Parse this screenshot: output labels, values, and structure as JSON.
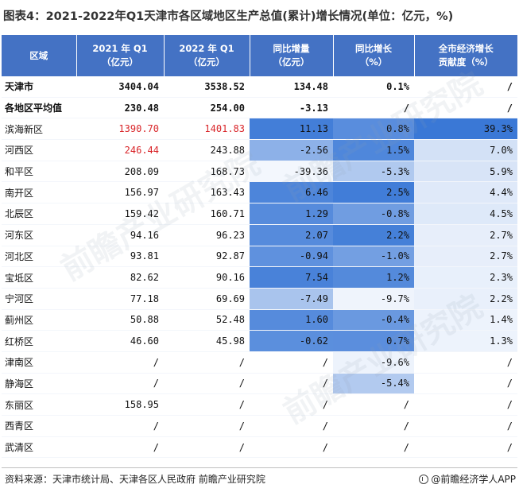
{
  "title": "图表4：2021-2022年Q1天津市各区域地区生产总值(累计)增长情况(单位：亿元，%)",
  "headers": [
    [
      "区域"
    ],
    [
      "2021 年 Q1",
      "（亿元）"
    ],
    [
      "2022 年 Q1",
      "（亿元）"
    ],
    [
      "同比增量",
      "（亿元）"
    ],
    [
      "同比增长",
      "（%）"
    ],
    [
      "全市经济增长",
      "贡献度（%）"
    ]
  ],
  "rows": [
    {
      "name": "天津市",
      "v2021": "3404.04",
      "v2022": "3538.52",
      "inc": "134.48",
      "growth": "0.1%",
      "contrib": "/",
      "bold": true
    },
    {
      "name": "各地区平均值",
      "v2021": "230.48",
      "v2022": "254.00",
      "inc": "-3.13",
      "growth": "/",
      "contrib": "/",
      "bold": true
    },
    {
      "name": "滨海新区",
      "v2021": "1390.70",
      "v2022": "1401.83",
      "inc": "11.13",
      "growth": "0.8%",
      "contrib": "39.3%",
      "red2021": true,
      "red2022": true
    },
    {
      "name": "河西区",
      "v2021": "246.44",
      "v2022": "243.88",
      "inc": "-2.56",
      "growth": "1.5%",
      "contrib": "7.0%",
      "red2021": true
    },
    {
      "name": "和平区",
      "v2021": "208.09",
      "v2022": "168.73",
      "inc": "-39.36",
      "growth": "-5.3%",
      "contrib": "5.9%"
    },
    {
      "name": "南开区",
      "v2021": "156.97",
      "v2022": "163.43",
      "inc": "6.46",
      "growth": "2.5%",
      "contrib": "4.4%"
    },
    {
      "name": "北辰区",
      "v2021": "159.42",
      "v2022": "160.71",
      "inc": "1.29",
      "growth": "-0.8%",
      "contrib": "4.5%"
    },
    {
      "name": "河东区",
      "v2021": "94.16",
      "v2022": "96.23",
      "inc": "2.07",
      "growth": "2.2%",
      "contrib": "2.7%"
    },
    {
      "name": "河北区",
      "v2021": "93.81",
      "v2022": "92.87",
      "inc": "-0.94",
      "growth": "-1.0%",
      "contrib": "2.7%"
    },
    {
      "name": "宝坻区",
      "v2021": "82.62",
      "v2022": "90.16",
      "inc": "7.54",
      "growth": "1.2%",
      "contrib": "2.3%"
    },
    {
      "name": "宁河区",
      "v2021": "77.18",
      "v2022": "69.69",
      "inc": "-7.49",
      "growth": "-9.7%",
      "contrib": "2.2%"
    },
    {
      "name": "蓟州区",
      "v2021": "50.88",
      "v2022": "52.48",
      "inc": "1.60",
      "growth": "-0.4%",
      "contrib": "1.4%"
    },
    {
      "name": "红桥区",
      "v2021": "46.60",
      "v2022": "45.98",
      "inc": "-0.62",
      "growth": "0.7%",
      "contrib": "1.3%"
    },
    {
      "name": "津南区",
      "v2021": "/",
      "v2022": "/",
      "inc": "/",
      "growth": "-9.6%",
      "contrib": "/"
    },
    {
      "name": "静海区",
      "v2021": "/",
      "v2022": "/",
      "inc": "/",
      "growth": "-5.4%",
      "contrib": "/"
    },
    {
      "name": "东丽区",
      "v2021": "158.95",
      "v2022": "/",
      "inc": "/",
      "growth": "/",
      "contrib": "/"
    },
    {
      "name": "西青区",
      "v2021": "/",
      "v2022": "/",
      "inc": "/",
      "growth": "/",
      "contrib": "/"
    },
    {
      "name": "武清区",
      "v2021": "/",
      "v2022": "/",
      "inc": "/",
      "growth": "/",
      "contrib": "/"
    }
  ],
  "colors": {
    "header_bg": "#4472c4",
    "cell_red": "#d9262a",
    "shade_strong": "#3a78d6",
    "shade_light": "#f3f7fd"
  },
  "watermark": "前瞻产业研究院",
  "source": "资料来源：天津市统计局、天津各区人民政府 前瞻产业研究院",
  "brand": "@前瞻经济学人APP"
}
